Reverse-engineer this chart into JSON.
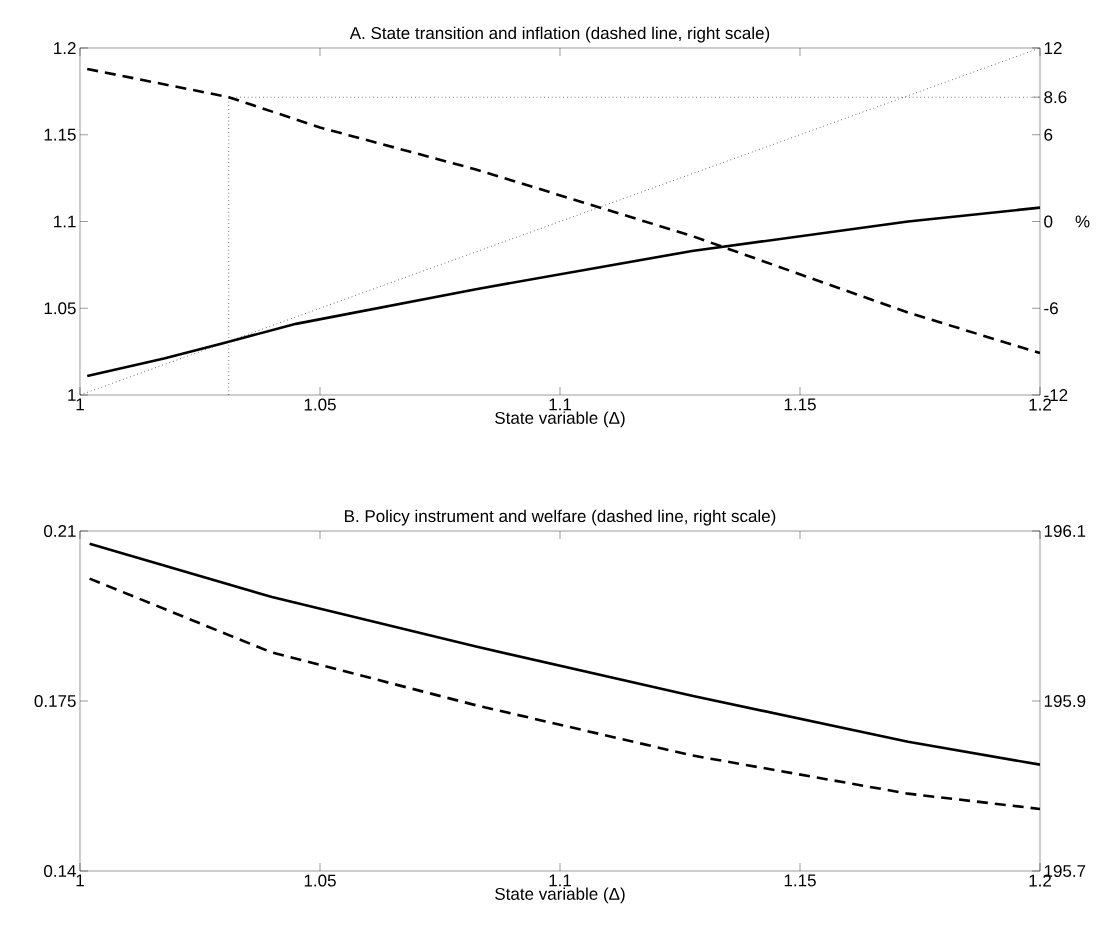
{
  "chart_data": [
    {
      "type": "line",
      "title": "A. State transition and inflation (dashed line, right scale)",
      "xlabel": "State variable (Δ)",
      "y2label": "%",
      "xlim": [
        1,
        1.2
      ],
      "xticks": [
        1,
        1.05,
        1.1,
        1.15,
        1.2
      ],
      "ylim": [
        1,
        1.2
      ],
      "yticks": [
        1,
        1.05,
        1.1,
        1.15,
        1.2
      ],
      "y2lim": [
        -12,
        12
      ],
      "y2ticks": [
        -12,
        -6,
        0,
        6,
        8.6,
        12
      ],
      "grid": false,
      "series": [
        {
          "color": "#000000",
          "line_style": "solid",
          "x": [
            1.0015,
            1.0175,
            1.03,
            1.045,
            1.0825,
            1.1275,
            1.1725,
            1.2
          ],
          "values": [
            1.011,
            1.021,
            1.03,
            1.041,
            1.061,
            1.083,
            1.1,
            1.108
          ]
        },
        {
          "color": "#000000",
          "line_style": "dashed",
          "axis": "y2",
          "x": [
            1.0015,
            1.031,
            1.05,
            1.0825,
            1.1275,
            1.1725,
            1.2
          ],
          "values": [
            10.55,
            8.6,
            6.5,
            3.6,
            -1.0,
            -6.3,
            -9.1
          ]
        },
        {
          "color": "#000000",
          "line_style": "dotted",
          "x": [
            1,
            1.2
          ],
          "values": [
            1,
            1.2
          ]
        },
        {
          "color": "#000000",
          "line_style": "dotted",
          "x": [
            1.031,
            1.031
          ],
          "values": [
            1,
            1.172
          ]
        },
        {
          "color": "#000000",
          "line_style": "dotted",
          "axis": "y2",
          "x": [
            1.031,
            1.2
          ],
          "values": [
            8.6,
            8.6
          ]
        }
      ]
    },
    {
      "type": "line",
      "title": "B. Policy instrument and welfare (dashed line, right scale)",
      "xlabel": "State variable (Δ)",
      "xlim": [
        1,
        1.2
      ],
      "xticks": [
        1,
        1.05,
        1.1,
        1.15,
        1.2
      ],
      "ylim": [
        0.14,
        0.21
      ],
      "yticks": [
        0.14,
        0.175,
        0.21
      ],
      "y2lim": [
        195.7,
        196.1
      ],
      "y2ticks": [
        195.7,
        195.9,
        196.1
      ],
      "grid": false,
      "series": [
        {
          "color": "#000000",
          "line_style": "solid",
          "x": [
            1.002,
            1.04,
            1.0825,
            1.1275,
            1.1725,
            1.2
          ],
          "values": [
            0.2074,
            0.1964,
            0.1862,
            0.1761,
            0.1666,
            0.1619
          ]
        },
        {
          "color": "#000000",
          "line_style": "dashed",
          "axis": "y2",
          "x": [
            1.002,
            1.04,
            1.0825,
            1.1275,
            1.1725,
            1.2
          ],
          "values": [
            196.044,
            195.957,
            195.895,
            195.836,
            195.791,
            195.773
          ]
        }
      ]
    }
  ]
}
